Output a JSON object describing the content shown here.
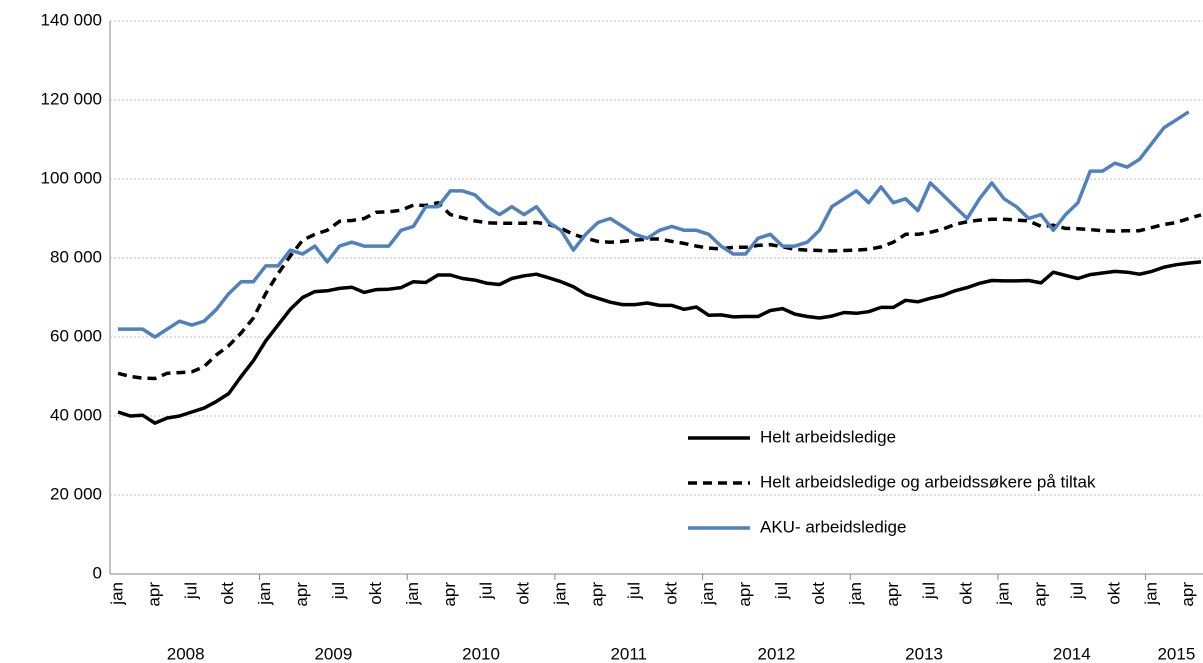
{
  "chart_data": {
    "type": "line",
    "categories": [
      "jan",
      null,
      null,
      "apr",
      null,
      null,
      "jul",
      null,
      null,
      "okt",
      null,
      null,
      "jan",
      null,
      null,
      "apr",
      null,
      null,
      "jul",
      null,
      null,
      "okt",
      null,
      null,
      "jan",
      null,
      null,
      "apr",
      null,
      null,
      "jul",
      null,
      null,
      "okt",
      null,
      null,
      "jan",
      null,
      null,
      "apr",
      null,
      null,
      "jul",
      null,
      null,
      "okt",
      null,
      null,
      "jan",
      null,
      null,
      "apr",
      null,
      null,
      "jul",
      null,
      null,
      "okt",
      null,
      null,
      "jan",
      null,
      null,
      "apr",
      null,
      null,
      "jul",
      null,
      null,
      "okt",
      null,
      null,
      "jan",
      null,
      null,
      "apr",
      null,
      null,
      "jul",
      null,
      null,
      "okt",
      null,
      null,
      "jan",
      null,
      null,
      "apr",
      null
    ],
    "years": [
      "2008",
      "2009",
      "2010",
      "2011",
      "2012",
      "2013",
      "2014",
      "2015"
    ],
    "series": [
      {
        "name": "Helt arbeidsledige",
        "color": "#000000",
        "style": "solid",
        "values": [
          41000,
          40000,
          40200,
          38200,
          39500,
          40000,
          41000,
          42000,
          43700,
          45700,
          50000,
          54000,
          59000,
          63000,
          67000,
          70000,
          71500,
          71700,
          72300,
          72600,
          71300,
          72000,
          72100,
          72500,
          74000,
          73800,
          75700,
          75700,
          74800,
          74400,
          73600,
          73300,
          74800,
          75500,
          75900,
          75000,
          74000,
          72700,
          70800,
          69800,
          68800,
          68200,
          68200,
          68600,
          68000,
          68000,
          67000,
          67600,
          65500,
          65600,
          65100,
          65200,
          65200,
          66700,
          67200,
          65800,
          65200,
          64800,
          65300,
          66200,
          66000,
          66400,
          67500,
          67500,
          69300,
          68900,
          69800,
          70500,
          71700,
          72500,
          73600,
          74300,
          74200,
          74200,
          74300,
          73700,
          76400,
          75600,
          74800,
          75800,
          76200,
          76600,
          76400,
          75900,
          76600,
          77700,
          78300,
          78700,
          79000
        ]
      },
      {
        "name": "Helt arbeidsledige og arbeidssøkere på tiltak",
        "color": "#000000",
        "style": "dashed",
        "values": [
          50800,
          50000,
          49600,
          49500,
          50800,
          51000,
          51200,
          52500,
          55500,
          57800,
          61000,
          64800,
          71000,
          76000,
          80500,
          84500,
          86000,
          87000,
          89300,
          89500,
          90000,
          91600,
          91700,
          92100,
          93400,
          93300,
          94000,
          91000,
          90200,
          89400,
          88900,
          88800,
          88800,
          88800,
          89000,
          88500,
          87500,
          86000,
          85000,
          84200,
          84000,
          84200,
          84500,
          84800,
          84800,
          84200,
          83700,
          83000,
          82500,
          82300,
          82700,
          82700,
          83200,
          83400,
          82800,
          82200,
          82000,
          81900,
          81800,
          81900,
          82000,
          82200,
          82800,
          84000,
          86000,
          86000,
          86500,
          87300,
          88500,
          89200,
          89600,
          89800,
          89800,
          89600,
          89400,
          88000,
          88300,
          87500,
          87400,
          87200,
          86900,
          86800,
          86900,
          86900,
          87700,
          88500,
          89000,
          90000,
          90900
        ]
      },
      {
        "name": "AKU- arbeidsledige",
        "color": "#4f81bd",
        "style": "solid",
        "values": [
          62000,
          62000,
          62000,
          60000,
          62000,
          64000,
          63000,
          64000,
          67000,
          71000,
          74000,
          74000,
          78000,
          78000,
          82000,
          81000,
          83000,
          79000,
          83000,
          84000,
          83000,
          83000,
          83000,
          87000,
          88000,
          93000,
          93000,
          97000,
          97000,
          96000,
          93000,
          91000,
          93000,
          91000,
          93000,
          89000,
          87000,
          82000,
          86000,
          89000,
          90000,
          88000,
          86000,
          85000,
          87000,
          88000,
          87000,
          87000,
          86000,
          83000,
          81000,
          81000,
          85000,
          86000,
          83000,
          83000,
          84000,
          87000,
          93000,
          95000,
          97000,
          94000,
          98000,
          94000,
          95000,
          92000,
          99000,
          96000,
          93000,
          90000,
          95000,
          99000,
          95000,
          93000,
          90000,
          91000,
          87000,
          91000,
          94000,
          102000,
          102000,
          104000,
          103000,
          105000,
          109000,
          113000,
          115000,
          117000,
          null
        ]
      }
    ],
    "ylim": [
      0,
      140000
    ],
    "yticks": [
      0,
      {
        "value": 20000,
        "label": "20 000"
      },
      {
        "value": 40000,
        "label": "40 000"
      },
      {
        "value": 60000,
        "label": "60 000"
      },
      {
        "value": 80000,
        "label": "80 000"
      },
      {
        "value": 100000,
        "label": "100 000"
      },
      {
        "value": 120000,
        "label": "120 000"
      },
      {
        "value": 140000,
        "label": "140 000"
      }
    ],
    "grid": true,
    "legend": "lower right"
  }
}
